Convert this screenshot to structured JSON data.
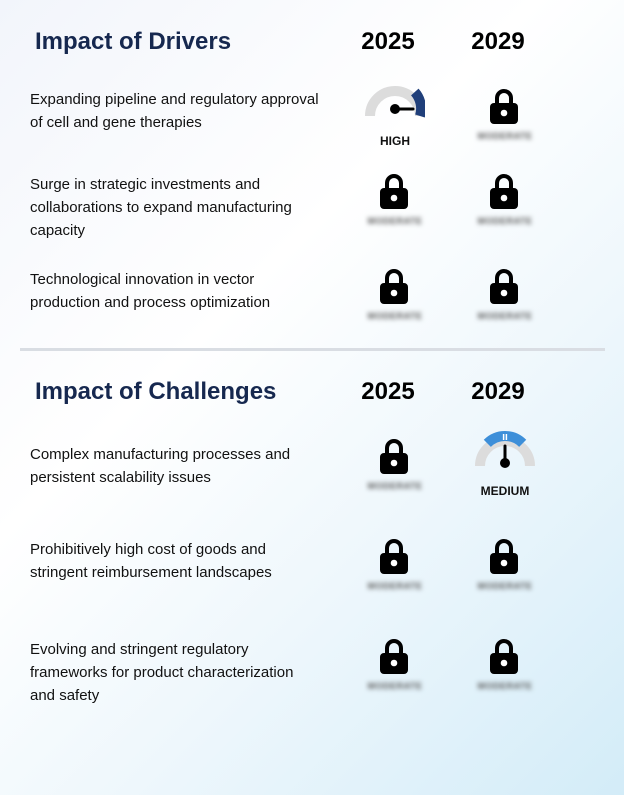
{
  "drivers": {
    "title": "Impact of Drivers",
    "year_a": "2025",
    "year_b": "2029",
    "rows": [
      {
        "text": "Expanding pipeline and regulatory approval of cell and gene therapies",
        "year_a": {
          "state": "gauge",
          "label": "HIGH",
          "level": "high",
          "color": "#203f7a"
        },
        "year_b": {
          "state": "locked",
          "hidden_label": "MODERATE"
        }
      },
      {
        "text": "Surge in strategic investments and collaborations to expand manufacturing capacity",
        "year_a": {
          "state": "locked",
          "hidden_label": "MODERATE"
        },
        "year_b": {
          "state": "locked",
          "hidden_label": "MODERATE"
        }
      },
      {
        "text": "Technological innovation in vector production and process optimization",
        "year_a": {
          "state": "locked",
          "hidden_label": "MODERATE"
        },
        "year_b": {
          "state": "locked",
          "hidden_label": "MODERATE"
        }
      }
    ]
  },
  "challenges": {
    "title": "Impact of Challenges",
    "year_a": "2025",
    "year_b": "2029",
    "rows": [
      {
        "text": "Complex manufacturing processes and persistent scalability issues",
        "year_a": {
          "state": "locked",
          "hidden_label": "MODERATE"
        },
        "year_b": {
          "state": "gauge",
          "label": "MEDIUM",
          "level": "medium",
          "color": "#3d8fd9"
        }
      },
      {
        "text": "Prohibitively high cost of goods and stringent reimbursement landscapes",
        "year_a": {
          "state": "locked",
          "hidden_label": "MODERATE"
        },
        "year_b": {
          "state": "locked",
          "hidden_label": "MODERATE"
        }
      },
      {
        "text": "Evolving and stringent regulatory frameworks for product characterization and safety",
        "year_a": {
          "state": "locked",
          "hidden_label": "MODERATE"
        },
        "year_b": {
          "state": "locked",
          "hidden_label": "MODERATE"
        }
      }
    ]
  },
  "colors": {
    "title": "#16284f",
    "gauge_track": "#dcdcdc",
    "lock": "#000000"
  }
}
